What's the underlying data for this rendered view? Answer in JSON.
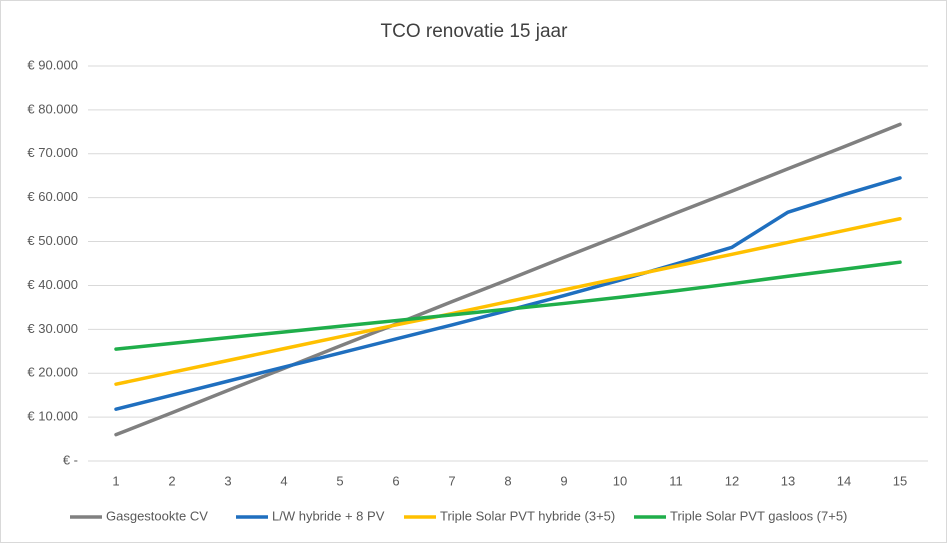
{
  "chart_data": {
    "type": "line",
    "title": "TCO renovatie 15 jaar",
    "categories": [
      1,
      2,
      3,
      4,
      5,
      6,
      7,
      8,
      9,
      10,
      11,
      12,
      13,
      14,
      15
    ],
    "series": [
      {
        "name": "Gasgestookte CV",
        "color": "#808080",
        "values": [
          6000,
          11000,
          16100,
          21100,
          26200,
          31200,
          36300,
          41300,
          46400,
          51400,
          56500,
          61500,
          66600,
          71600,
          76700
        ]
      },
      {
        "name": "L/W hybride + 8 PV",
        "color": "#1f6fbf",
        "values": [
          11800,
          15000,
          18200,
          21400,
          24600,
          27800,
          31000,
          34300,
          37700,
          41200,
          44900,
          48700,
          56700,
          60700,
          64500
        ]
      },
      {
        "name": "Triple Solar PVT hybride (3+5)",
        "color": "#ffc000",
        "values": [
          17500,
          20200,
          22900,
          25600,
          28300,
          31000,
          33600,
          36300,
          39000,
          41700,
          44400,
          47100,
          49800,
          52500,
          55200
        ]
      },
      {
        "name": "Triple Solar PVT gasloos (7+5)",
        "color": "#1fae4a",
        "values": [
          25500,
          26800,
          28100,
          29400,
          30700,
          32000,
          33300,
          34600,
          35900,
          37300,
          38800,
          40400,
          42100,
          43700,
          45300
        ]
      }
    ],
    "ylim": [
      0,
      90000
    ],
    "yticks": [
      {
        "value": 0,
        "label": "€ -"
      },
      {
        "value": 10000,
        "label": "€ 10.000"
      },
      {
        "value": 20000,
        "label": "€ 20.000"
      },
      {
        "value": 30000,
        "label": "€ 30.000"
      },
      {
        "value": 40000,
        "label": "€ 40.000"
      },
      {
        "value": 50000,
        "label": "€ 50.000"
      },
      {
        "value": 60000,
        "label": "€ 60.000"
      },
      {
        "value": 70000,
        "label": "€ 70.000"
      },
      {
        "value": 80000,
        "label": "€ 80.000"
      },
      {
        "value": 90000,
        "label": "€ 90.000"
      }
    ],
    "grid": true,
    "legend": "bottom"
  }
}
